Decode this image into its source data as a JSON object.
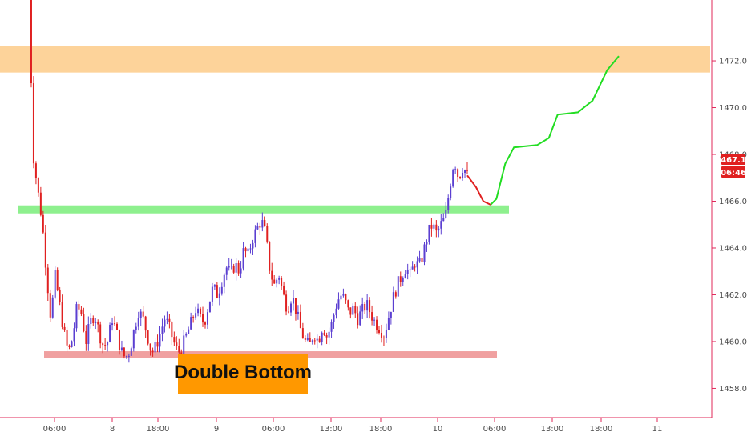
{
  "chart_data": {
    "type": "candlestick",
    "title": "",
    "xlabel": "",
    "ylabel": "",
    "ylim": [
      1456.75,
      1474.6
    ],
    "y_ticks": [
      "1458.00",
      "1460.00",
      "1462.00",
      "1464.00",
      "1466.00",
      "1468.00",
      "1470.00",
      "1472.00"
    ],
    "x_ticks": [
      "06:00",
      "8",
      "18:00",
      "9",
      "06:00",
      "13:00",
      "18:00",
      "10",
      "06:00",
      "13:00",
      "18:00",
      "11"
    ],
    "grid": false,
    "last_price": "1467.11",
    "time_to_close": "06:46",
    "colors": {
      "up": "#5b3fd1",
      "down": "#e02020",
      "resistance_zone": "#fdd39a",
      "support_line": "#8ef08e",
      "bottom_line": "#f0a0a0",
      "projection_up": "#22dd22",
      "projection_down": "#e02020",
      "annotation_bg": "#ff9800",
      "axis": "#e0285a"
    },
    "zones": [
      {
        "kind": "resistance",
        "from": 1471.5,
        "to": 1472.65
      },
      {
        "kind": "neckline",
        "level": 1465.65
      },
      {
        "kind": "double-bottom-support",
        "level": 1459.45
      }
    ],
    "annotation": "Double Bottom",
    "price_path": [
      [
        0,
        1475.0
      ],
      [
        1,
        1468.0
      ],
      [
        2,
        1466.5
      ],
      [
        3,
        1465.2
      ],
      [
        4,
        1463.0
      ],
      [
        5,
        1461.0
      ],
      [
        6,
        1462.8
      ],
      [
        7,
        1461.6
      ],
      [
        8,
        1460.4
      ],
      [
        9,
        1459.5
      ],
      [
        10,
        1460.2
      ],
      [
        11,
        1461.5
      ],
      [
        12,
        1461.2
      ],
      [
        13,
        1460.0
      ],
      [
        14,
        1460.8
      ],
      [
        15,
        1461.2
      ],
      [
        16,
        1460.4
      ],
      [
        17,
        1459.8
      ],
      [
        18,
        1460.0
      ],
      [
        19,
        1461.0
      ],
      [
        20,
        1460.4
      ],
      [
        21,
        1459.6
      ],
      [
        22,
        1459.3
      ],
      [
        23,
        1459.6
      ],
      [
        24,
        1460.5
      ],
      [
        25,
        1461.3
      ],
      [
        26,
        1461.0
      ],
      [
        27,
        1460.3
      ],
      [
        28,
        1459.5
      ],
      [
        29,
        1459.8
      ],
      [
        30,
        1460.4
      ],
      [
        31,
        1461.0
      ],
      [
        32,
        1460.6
      ],
      [
        33,
        1460.0
      ],
      [
        34,
        1459.5
      ],
      [
        35,
        1459.8
      ],
      [
        36,
        1460.3
      ],
      [
        37,
        1460.8
      ],
      [
        38,
        1461.4
      ],
      [
        39,
        1461.0
      ],
      [
        40,
        1460.8
      ],
      [
        41,
        1461.6
      ],
      [
        42,
        1462.3
      ],
      [
        43,
        1462.0
      ],
      [
        44,
        1462.6
      ],
      [
        45,
        1463.2
      ],
      [
        46,
        1462.9
      ],
      [
        47,
        1463.3
      ],
      [
        48,
        1463.0
      ],
      [
        49,
        1463.9
      ],
      [
        50,
        1463.7
      ],
      [
        51,
        1464.4
      ],
      [
        52,
        1464.8
      ],
      [
        53,
        1465.2
      ],
      [
        54,
        1464.6
      ],
      [
        55,
        1463.0
      ],
      [
        56,
        1462.4
      ],
      [
        57,
        1462.9
      ],
      [
        58,
        1462.0
      ],
      [
        59,
        1461.4
      ],
      [
        60,
        1462.0
      ],
      [
        61,
        1461.3
      ],
      [
        62,
        1460.5
      ],
      [
        63,
        1460.0
      ],
      [
        64,
        1459.8
      ],
      [
        65,
        1460.4
      ],
      [
        66,
        1460.0
      ],
      [
        67,
        1460.7
      ],
      [
        68,
        1460.2
      ],
      [
        69,
        1460.7
      ],
      [
        70,
        1461.5
      ],
      [
        71,
        1462.0
      ],
      [
        72,
        1461.8
      ],
      [
        73,
        1461.2
      ],
      [
        74,
        1461.4
      ],
      [
        75,
        1461.0
      ],
      [
        76,
        1461.3
      ],
      [
        77,
        1461.6
      ],
      [
        78,
        1461.2
      ],
      [
        79,
        1460.8
      ],
      [
        80,
        1460.6
      ],
      [
        81,
        1460.3
      ],
      [
        82,
        1461.0
      ],
      [
        83,
        1461.8
      ],
      [
        84,
        1462.4
      ],
      [
        85,
        1462.8
      ],
      [
        86,
        1463.2
      ],
      [
        87,
        1462.8
      ],
      [
        88,
        1463.4
      ],
      [
        89,
        1463.2
      ],
      [
        90,
        1463.8
      ],
      [
        91,
        1464.6
      ],
      [
        92,
        1465.0
      ],
      [
        93,
        1464.6
      ],
      [
        94,
        1465.0
      ],
      [
        95,
        1465.3
      ],
      [
        96,
        1466.6
      ],
      [
        97,
        1467.8
      ],
      [
        98,
        1467.0
      ],
      [
        99,
        1467.5
      ],
      [
        100,
        1467.11
      ]
    ],
    "projection": [
      {
        "x": 0.0,
        "y": 1467.1
      },
      {
        "x": 0.3,
        "y": 1466.6
      },
      {
        "x": 0.55,
        "y": 1466.0
      },
      {
        "x": 0.8,
        "y": 1465.85
      },
      {
        "x": 1.0,
        "y": 1466.1
      },
      {
        "x": 1.3,
        "y": 1467.6
      },
      {
        "x": 1.6,
        "y": 1468.3
      },
      {
        "x": 2.4,
        "y": 1468.4
      },
      {
        "x": 2.8,
        "y": 1468.7
      },
      {
        "x": 3.1,
        "y": 1469.7
      },
      {
        "x": 3.8,
        "y": 1469.8
      },
      {
        "x": 4.3,
        "y": 1470.3
      },
      {
        "x": 4.8,
        "y": 1471.6
      },
      {
        "x": 5.2,
        "y": 1472.2
      }
    ]
  }
}
